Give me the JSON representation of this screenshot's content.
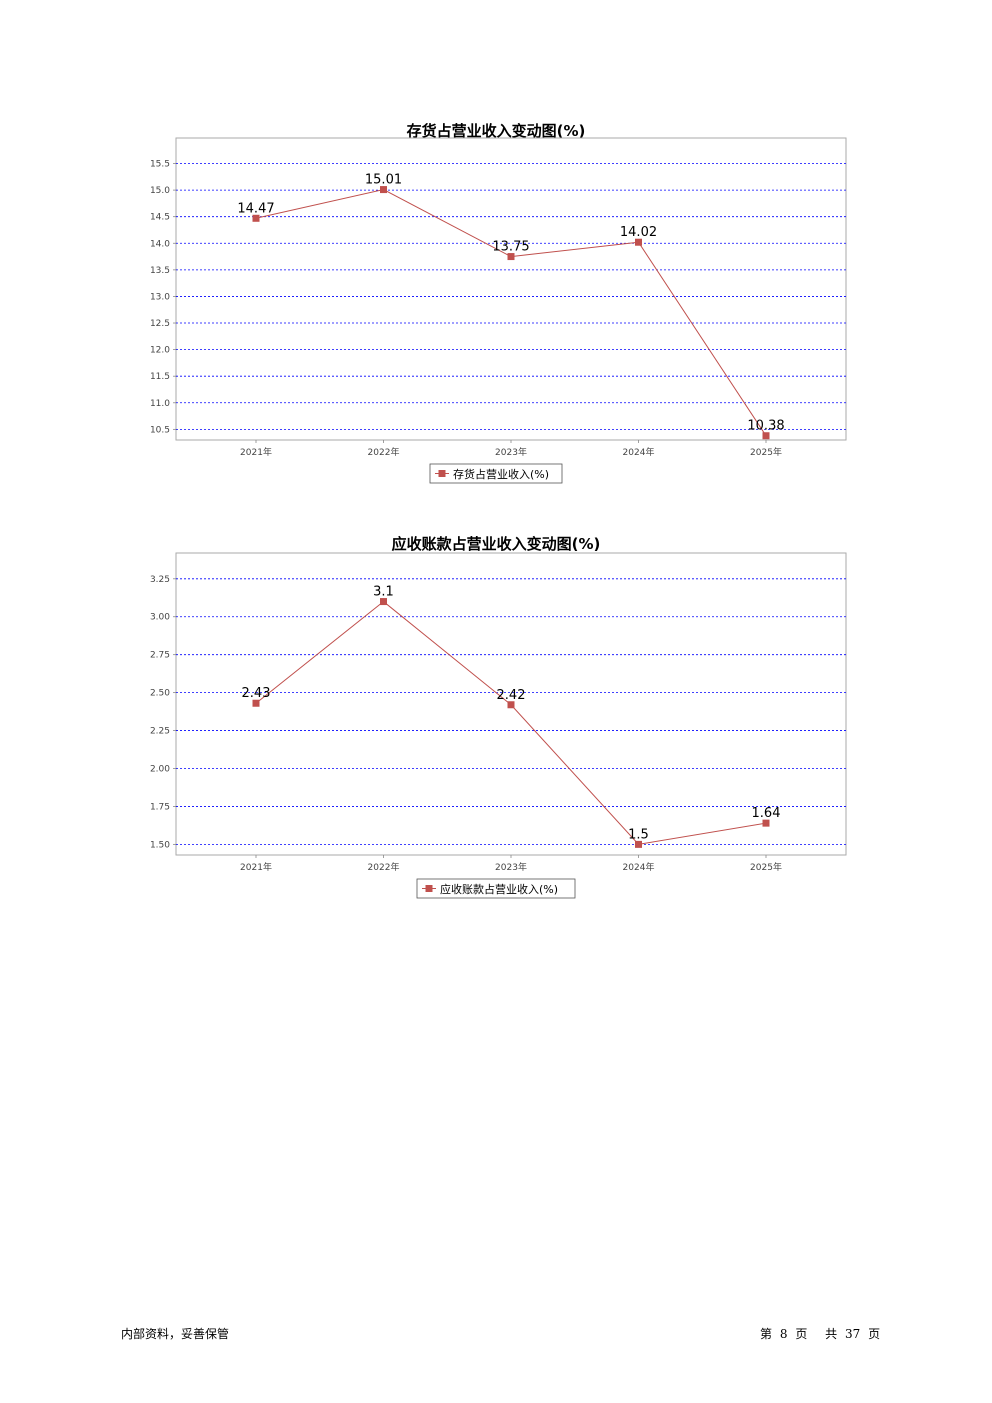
{
  "chart_data": [
    {
      "type": "line",
      "title": "存货占营业收入变动图(%)",
      "categories": [
        "2021年",
        "2022年",
        "2023年",
        "2024年",
        "2025年"
      ],
      "series": [
        {
          "name": "存货占营业收入(%)",
          "values": [
            14.47,
            15.01,
            13.75,
            14.02,
            10.38
          ]
        }
      ],
      "data_labels": [
        "14.47",
        "15.01",
        "13.75",
        "14.02",
        "10.38"
      ],
      "ylim": [
        10.3,
        15.98
      ],
      "yticks": [
        10.5,
        11.0,
        11.5,
        12.0,
        12.5,
        13.0,
        13.5,
        14.0,
        14.5,
        15.0,
        15.5
      ],
      "ytick_labels": [
        "10.5",
        "11.0",
        "11.5",
        "12.0",
        "12.5",
        "13.0",
        "13.5",
        "14.0",
        "14.5",
        "15.0",
        "15.5"
      ],
      "grid": true,
      "legend_position": "bottom",
      "colors": {
        "line": "#c0504d",
        "grid": "#0000ff",
        "frame": "#aaaaaa"
      }
    },
    {
      "type": "line",
      "title": "应收账款占营业收入变动图(%)",
      "categories": [
        "2021年",
        "2022年",
        "2023年",
        "2024年",
        "2025年"
      ],
      "series": [
        {
          "name": "应收账款占营业收入(%)",
          "values": [
            2.43,
            3.1,
            2.42,
            1.5,
            1.64
          ]
        }
      ],
      "data_labels": [
        "2.43",
        "3.1",
        "2.42",
        "1.5",
        "1.64"
      ],
      "ylim": [
        1.43,
        3.42
      ],
      "yticks": [
        1.5,
        1.75,
        2.0,
        2.25,
        2.5,
        2.75,
        3.0,
        3.25
      ],
      "ytick_labels": [
        "1.50",
        "1.75",
        "2.00",
        "2.25",
        "2.50",
        "2.75",
        "3.00",
        "3.25"
      ],
      "grid": true,
      "legend_position": "bottom",
      "colors": {
        "line": "#c0504d",
        "grid": "#0000ff",
        "frame": "#aaaaaa"
      }
    }
  ],
  "footer": {
    "left": "内部资料，妥善保管",
    "page_prefix": "第",
    "page_number": "8",
    "page_suffix": "页",
    "total_prefix": "共",
    "total_pages": "37",
    "total_suffix": "页"
  }
}
